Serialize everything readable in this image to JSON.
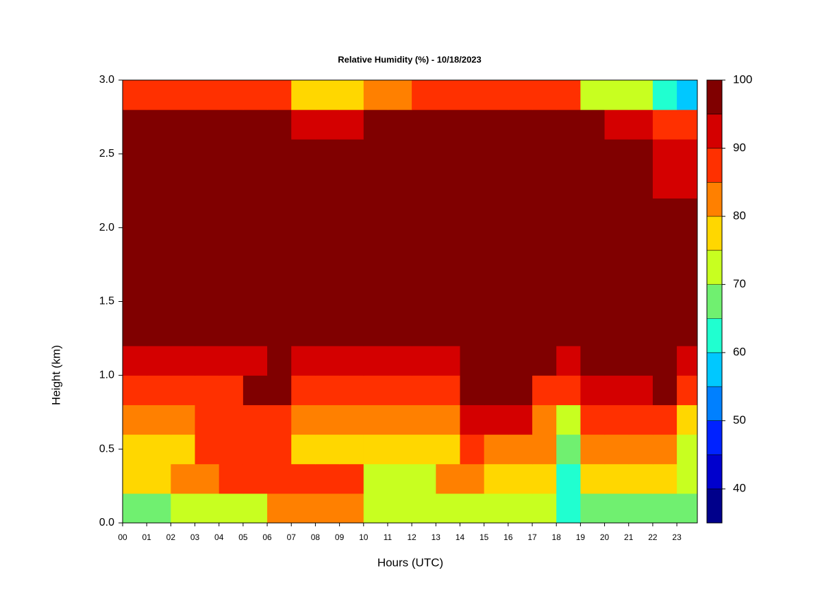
{
  "chart_data": {
    "type": "heatmap",
    "title": "Relative Humidity (%) - 10/18/2023",
    "xlabel": "Hours (UTC)",
    "ylabel": "Height (km)",
    "xlim": [
      0,
      23.85
    ],
    "ylim": [
      0,
      3
    ],
    "xticks": [
      {
        "value": 0,
        "label": "00"
      },
      {
        "value": 1,
        "label": "01"
      },
      {
        "value": 2,
        "label": "02"
      },
      {
        "value": 3,
        "label": "03"
      },
      {
        "value": 4,
        "label": "04"
      },
      {
        "value": 5,
        "label": "05"
      },
      {
        "value": 6,
        "label": "06"
      },
      {
        "value": 7,
        "label": "07"
      },
      {
        "value": 8,
        "label": "08"
      },
      {
        "value": 9,
        "label": "09"
      },
      {
        "value": 10,
        "label": "10"
      },
      {
        "value": 11,
        "label": "11"
      },
      {
        "value": 12,
        "label": "12"
      },
      {
        "value": 13,
        "label": "13"
      },
      {
        "value": 14,
        "label": "14"
      },
      {
        "value": 15,
        "label": "15"
      },
      {
        "value": 16,
        "label": "16"
      },
      {
        "value": 17,
        "label": "17"
      },
      {
        "value": 18,
        "label": "18"
      },
      {
        "value": 19,
        "label": "19"
      },
      {
        "value": 20,
        "label": "20"
      },
      {
        "value": 21,
        "label": "21"
      },
      {
        "value": 22,
        "label": "22"
      },
      {
        "value": 23,
        "label": "23"
      }
    ],
    "yticks": [
      {
        "value": 0,
        "label": "0.0"
      },
      {
        "value": 0.5,
        "label": "0.5"
      },
      {
        "value": 1,
        "label": "1.0"
      },
      {
        "value": 1.5,
        "label": "1.5"
      },
      {
        "value": 2,
        "label": "2.0"
      },
      {
        "value": 2.5,
        "label": "2.5"
      },
      {
        "value": 3,
        "label": "3.0"
      }
    ],
    "x": [
      0.5,
      1.5,
      2.5,
      3.5,
      4.5,
      5.5,
      6.5,
      7.5,
      8.5,
      9.5,
      10.5,
      11.5,
      12.5,
      13.5,
      14.5,
      15.5,
      16.5,
      17.5,
      18.5,
      19.5,
      20.5,
      21.5,
      22.5,
      23.5
    ],
    "y": [
      0.1,
      0.3,
      0.5,
      0.7,
      0.9,
      1.1,
      1.3,
      1.5,
      1.7,
      1.9,
      2.1,
      2.3,
      2.5,
      2.7,
      2.9
    ],
    "z": [
      [
        65,
        65,
        72,
        72,
        72,
        72,
        80,
        83,
        83,
        83,
        74,
        74,
        74,
        74,
        70,
        70,
        70,
        70,
        60,
        68,
        68,
        68,
        65,
        65
      ],
      [
        75,
        75,
        82,
        82,
        88,
        88,
        88,
        87,
        87,
        87,
        74,
        74,
        74,
        82,
        82,
        78,
        78,
        78,
        63,
        75,
        75,
        75,
        76,
        70
      ],
      [
        78,
        78,
        78,
        87,
        87,
        87,
        87,
        78,
        78,
        78,
        78,
        78,
        78,
        78,
        85,
        82,
        82,
        82,
        68,
        80,
        80,
        80,
        82,
        74
      ],
      [
        80,
        80,
        80,
        88,
        88,
        88,
        88,
        80,
        80,
        80,
        80,
        82,
        82,
        82,
        92,
        90,
        90,
        84,
        70,
        85,
        85,
        85,
        88,
        78
      ],
      [
        88,
        88,
        88,
        88,
        88,
        95,
        95,
        88,
        88,
        88,
        88,
        88,
        88,
        88,
        96,
        96,
        96,
        88,
        85,
        90,
        90,
        90,
        97,
        88
      ],
      [
        93,
        93,
        93,
        93,
        93,
        93,
        97,
        93,
        93,
        93,
        93,
        93,
        93,
        93,
        97,
        97,
        97,
        97,
        92,
        97,
        97,
        97,
        97,
        93
      ],
      [
        98,
        98,
        98,
        98,
        98,
        98,
        98,
        98,
        98,
        98,
        98,
        98,
        98,
        98,
        98,
        98,
        98,
        98,
        98,
        98,
        98,
        98,
        98,
        98
      ],
      [
        98,
        98,
        98,
        98,
        98,
        98,
        98,
        98,
        98,
        98,
        98,
        98,
        98,
        98,
        98,
        98,
        98,
        98,
        98,
        98,
        98,
        98,
        98,
        98
      ],
      [
        98,
        98,
        98,
        98,
        98,
        98,
        98,
        98,
        98,
        98,
        98,
        98,
        98,
        98,
        98,
        98,
        98,
        98,
        98,
        98,
        98,
        98,
        98,
        98
      ],
      [
        98,
        98,
        98,
        98,
        98,
        98,
        98,
        98,
        98,
        98,
        98,
        98,
        98,
        98,
        98,
        98,
        98,
        98,
        98,
        98,
        98,
        98,
        98,
        98
      ],
      [
        98,
        98,
        98,
        98,
        98,
        98,
        98,
        98,
        98,
        98,
        98,
        98,
        98,
        98,
        98,
        98,
        98,
        98,
        98,
        98,
        98,
        98,
        98,
        98
      ],
      [
        98,
        98,
        98,
        98,
        98,
        98,
        98,
        98,
        98,
        98,
        98,
        98,
        98,
        98,
        98,
        98,
        98,
        98,
        98,
        98,
        98,
        98,
        94,
        94
      ],
      [
        98,
        98,
        98,
        98,
        98,
        98,
        98,
        98,
        98,
        98,
        98,
        98,
        98,
        98,
        98,
        98,
        98,
        98,
        98,
        98,
        98,
        98,
        94,
        94
      ],
      [
        97,
        97,
        97,
        97,
        97,
        97,
        97,
        92,
        92,
        92,
        97,
        97,
        97,
        97,
        97,
        97,
        97,
        97,
        97,
        95,
        92,
        92,
        88,
        88
      ],
      [
        85,
        85,
        88,
        88,
        88,
        88,
        88,
        78,
        78,
        78,
        80,
        80,
        88,
        88,
        88,
        88,
        88,
        88,
        85,
        72,
        72,
        72,
        60,
        55
      ]
    ],
    "levels": [
      35,
      40,
      45,
      50,
      55,
      60,
      65,
      70,
      75,
      80,
      85,
      90,
      95,
      100
    ],
    "colors": [
      "#00008b",
      "#0000cd",
      "#0022ff",
      "#0080ff",
      "#00c8ff",
      "#20ffd0",
      "#70f070",
      "#c8ff20",
      "#ffd700",
      "#ff8000",
      "#ff3000",
      "#d40000",
      "#800000"
    ],
    "cbar_ticks": [
      40,
      50,
      60,
      70,
      80,
      90,
      100
    ]
  }
}
